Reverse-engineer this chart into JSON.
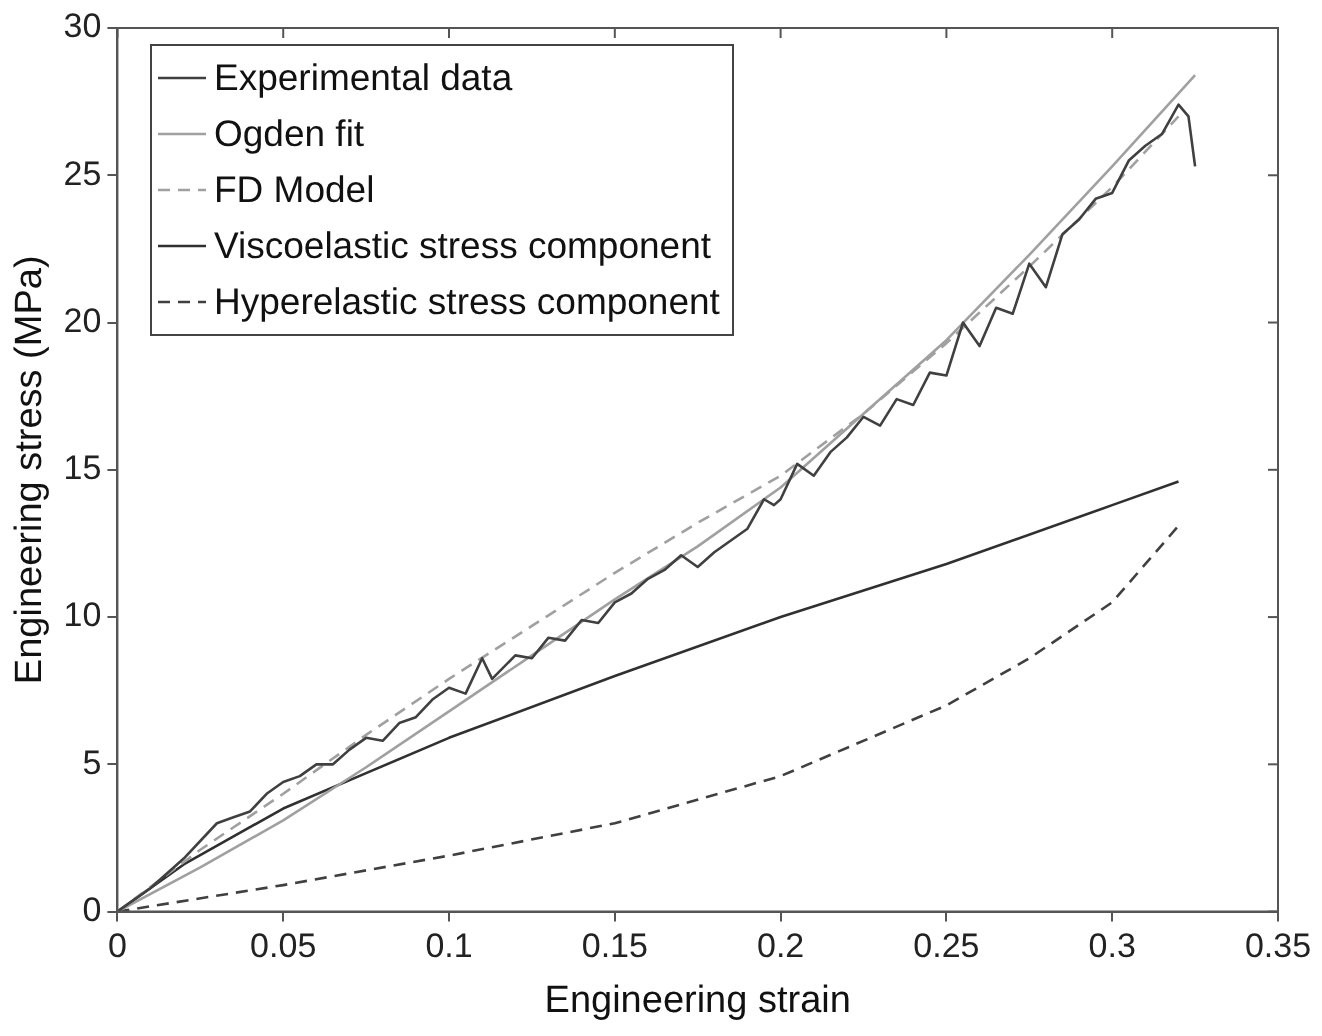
{
  "chart_data": {
    "type": "line",
    "xlabel": "Engineering strain",
    "ylabel": "Engineering stress (MPa)",
    "xlim": [
      0,
      0.35
    ],
    "xticks": [
      0,
      0.05,
      0.1,
      0.15,
      0.2,
      0.25,
      0.3,
      0.35
    ],
    "ylim": [
      0,
      30
    ],
    "yticks": [
      0,
      5,
      10,
      15,
      20,
      25,
      30
    ],
    "grid": false,
    "legend": "top left",
    "marker": "none",
    "series": [
      {
        "name": "Experimental data",
        "color": "#404040",
        "line_style": "solid",
        "x": [
          0,
          0.01,
          0.02,
          0.03,
          0.035,
          0.04,
          0.045,
          0.05,
          0.055,
          0.06,
          0.065,
          0.07,
          0.075,
          0.08,
          0.085,
          0.09,
          0.095,
          0.1,
          0.105,
          0.11,
          0.113,
          0.12,
          0.125,
          0.13,
          0.135,
          0.14,
          0.145,
          0.15,
          0.155,
          0.16,
          0.165,
          0.17,
          0.175,
          0.18,
          0.19,
          0.195,
          0.198,
          0.2,
          0.205,
          0.21,
          0.215,
          0.22,
          0.225,
          0.23,
          0.235,
          0.24,
          0.245,
          0.25,
          0.255,
          0.26,
          0.265,
          0.27,
          0.275,
          0.28,
          0.285,
          0.29,
          0.295,
          0.3,
          0.305,
          0.31,
          0.315,
          0.32,
          0.323,
          0.325
        ],
        "values": [
          0,
          0.8,
          1.8,
          3.0,
          3.2,
          3.4,
          4.0,
          4.4,
          4.6,
          5.0,
          5.0,
          5.5,
          5.9,
          5.8,
          6.4,
          6.6,
          7.2,
          7.6,
          7.4,
          8.6,
          7.9,
          8.7,
          8.6,
          9.3,
          9.2,
          9.9,
          9.8,
          10.5,
          10.8,
          11.3,
          11.6,
          12.1,
          11.7,
          12.2,
          13.0,
          14.0,
          13.8,
          14.0,
          15.2,
          14.8,
          15.6,
          16.1,
          16.8,
          16.5,
          17.4,
          17.2,
          18.3,
          18.2,
          20.0,
          19.2,
          20.5,
          20.3,
          22.0,
          21.2,
          23.0,
          23.5,
          24.2,
          24.4,
          25.5,
          26.0,
          26.4,
          27.4,
          27.0,
          25.3
        ]
      },
      {
        "name": "Ogden fit",
        "color": "#a0a0a0",
        "line_style": "solid",
        "x": [
          0,
          0.025,
          0.05,
          0.075,
          0.1,
          0.125,
          0.15,
          0.175,
          0.2,
          0.225,
          0.25,
          0.275,
          0.3,
          0.325
        ],
        "values": [
          0,
          1.5,
          3.1,
          4.9,
          6.8,
          8.7,
          10.6,
          12.4,
          14.4,
          16.9,
          19.4,
          22.3,
          25.3,
          28.4
        ]
      },
      {
        "name": "FD Model",
        "color": "#a0a0a0",
        "line_style": "dashed",
        "x": [
          0,
          0.025,
          0.05,
          0.075,
          0.1,
          0.125,
          0.15,
          0.175,
          0.2,
          0.225,
          0.25,
          0.275,
          0.3,
          0.32
        ],
        "values": [
          0,
          2.1,
          4.0,
          6.0,
          7.9,
          9.7,
          11.5,
          13.2,
          14.8,
          16.9,
          19.3,
          21.9,
          24.6,
          27.0
        ]
      },
      {
        "name": "Viscoelastic stress component",
        "color": "#303030",
        "line_style": "solid",
        "x": [
          0,
          0.02,
          0.05,
          0.075,
          0.1,
          0.15,
          0.2,
          0.25,
          0.3,
          0.32
        ],
        "values": [
          0,
          1.6,
          3.5,
          4.7,
          5.9,
          8.0,
          10.0,
          11.8,
          13.8,
          14.6
        ]
      },
      {
        "name": "Hyperelastic stress component",
        "color": "#404040",
        "line_style": "dashed",
        "x": [
          0,
          0.05,
          0.1,
          0.15,
          0.2,
          0.25,
          0.275,
          0.3,
          0.32
        ],
        "values": [
          0,
          0.9,
          1.9,
          3.0,
          4.6,
          7.0,
          8.6,
          10.5,
          13.1
        ]
      }
    ]
  }
}
